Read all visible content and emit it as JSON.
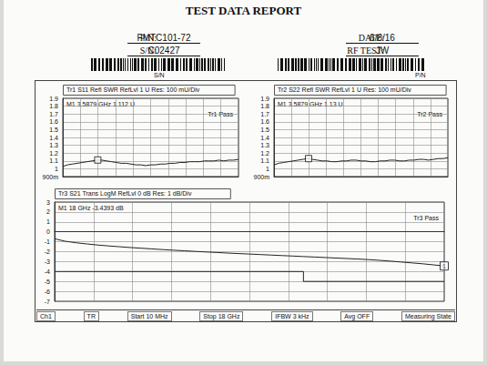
{
  "header": {
    "title": "TEST DATA REPORT",
    "fields": [
      {
        "label": "P/N:",
        "value": "FMTC101-72"
      },
      {
        "label": "DATE:",
        "value": "6/8/16"
      },
      {
        "label": "S/N:",
        "value": "C02427"
      },
      {
        "label": "RF TEST:",
        "value": "JW"
      }
    ],
    "barcodes": [
      "S/N",
      "P/N"
    ]
  },
  "chart_data": [
    {
      "type": "line",
      "title": "Tr1 S11 Refl SWR RefLvl 1 U Res: 100 mU/Div",
      "annotations": {
        "readout": "M1 3.5879 GHz 1.112 U",
        "status": "Tr1 Pass"
      },
      "x": [
        0.01,
        0.5,
        1,
        1.5,
        2,
        2.5,
        3,
        3.5,
        4,
        4.5,
        5,
        5.5,
        6,
        6.5,
        7,
        7.5,
        8,
        8.5,
        9,
        9.5,
        10,
        10.5,
        11,
        11.5,
        12,
        12.5,
        13,
        13.5,
        14,
        14.5,
        15,
        15.5,
        16,
        16.5,
        17,
        17.5,
        18
      ],
      "values": [
        1.03,
        1.05,
        1.06,
        1.07,
        1.08,
        1.09,
        1.1,
        1.11,
        1.11,
        1.1,
        1.09,
        1.08,
        1.07,
        1.07,
        1.06,
        1.05,
        1.05,
        1.04,
        1.05,
        1.05,
        1.06,
        1.06,
        1.07,
        1.07,
        1.08,
        1.08,
        1.09,
        1.09,
        1.09,
        1.1,
        1.1,
        1.1,
        1.11,
        1.1,
        1.11,
        1.11,
        1.12
      ],
      "color": "#222222",
      "marker_point": {
        "x": 3.5879,
        "y": 1.112
      },
      "xlim": [
        0.01,
        18
      ],
      "ylim": [
        0.9,
        1.9
      ],
      "yticks": [
        {
          "value": 0.9,
          "label": "900m"
        },
        1,
        1.1,
        1.2,
        1.3,
        1.4,
        1.5,
        1.6,
        1.7,
        1.8,
        1.9
      ],
      "grid": true,
      "tick_labels": "y"
    },
    {
      "type": "line",
      "title": "Tr2 S22 Refl SWR RefLvl 1 U Res: 100 mU/Div",
      "annotations": {
        "readout": "M1 3.5879 GHz 1.13 U",
        "status": "Tr2 Pass"
      },
      "x": [
        0.01,
        0.5,
        1,
        1.5,
        2,
        2.5,
        3,
        3.5,
        4,
        4.5,
        5,
        5.5,
        6,
        6.5,
        7,
        7.5,
        8,
        8.5,
        9,
        9.5,
        10,
        10.5,
        11,
        11.5,
        12,
        12.5,
        13,
        13.5,
        14,
        14.5,
        15,
        15.5,
        16,
        16.5,
        17,
        17.5,
        18
      ],
      "values": [
        1.05,
        1.07,
        1.08,
        1.09,
        1.1,
        1.11,
        1.12,
        1.13,
        1.12,
        1.11,
        1.1,
        1.1,
        1.09,
        1.09,
        1.1,
        1.1,
        1.11,
        1.11,
        1.1,
        1.1,
        1.09,
        1.09,
        1.1,
        1.1,
        1.11,
        1.11,
        1.1,
        1.1,
        1.11,
        1.11,
        1.12,
        1.12,
        1.11,
        1.12,
        1.13,
        1.13,
        1.14
      ],
      "color": "#222222",
      "marker_point": {
        "x": 3.5879,
        "y": 1.13
      },
      "xlim": [
        0.01,
        18
      ],
      "ylim": [
        0.9,
        1.9
      ],
      "yticks": [
        {
          "value": 0.9,
          "label": "900m"
        },
        1,
        1.1,
        1.2,
        1.3,
        1.4,
        1.5,
        1.6,
        1.7,
        1.8,
        1.9
      ],
      "grid": true,
      "tick_labels": "y"
    },
    {
      "type": "line",
      "title": "Tr3 S21 Trans LogM RefLvl 0 dB Res: 1 dB/Div",
      "annotations": {
        "readout": "M1 18 GHz -3.4393 dB",
        "status": "Tr3 Pass"
      },
      "x": [
        0.01,
        0.5,
        1,
        1.5,
        2,
        2.5,
        3,
        3.5,
        4,
        4.5,
        5,
        5.5,
        6,
        6.5,
        7,
        7.5,
        8,
        8.5,
        9,
        9.5,
        10,
        10.5,
        11,
        11.5,
        12,
        12.5,
        13,
        13.5,
        14,
        14.5,
        15,
        15.5,
        16,
        16.5,
        17,
        17.5,
        18
      ],
      "values": [
        -0.7,
        -0.95,
        -1.1,
        -1.22,
        -1.33,
        -1.42,
        -1.5,
        -1.58,
        -1.65,
        -1.72,
        -1.79,
        -1.85,
        -1.91,
        -1.97,
        -2.03,
        -2.08,
        -2.14,
        -2.19,
        -2.24,
        -2.29,
        -2.34,
        -2.39,
        -2.44,
        -2.49,
        -2.54,
        -2.59,
        -2.64,
        -2.69,
        -2.74,
        -2.8,
        -2.87,
        -2.95,
        -3.04,
        -3.13,
        -3.22,
        -3.33,
        -3.4393
      ],
      "color": "#222222",
      "limit": {
        "x": [
          0.01,
          11.5,
          11.5,
          18
        ],
        "values": [
          -4,
          -4,
          -5,
          -5
        ]
      },
      "marker_point": {
        "x": 18,
        "y": -3.4393,
        "label": "1"
      },
      "xlim": [
        0.01,
        18
      ],
      "ylim": [
        -7,
        3
      ],
      "yticks": [
        3,
        2,
        1,
        0,
        -1,
        -2,
        -3,
        -4,
        -5,
        -6,
        -7
      ],
      "grid": true,
      "tick_labels": "y"
    }
  ],
  "status_bar": [
    "Ch1",
    "TR",
    "Start 10 MHz",
    "Stop 18 GHz",
    "IFBW 3 kHz",
    "Avg OFF",
    "Measuring State"
  ]
}
